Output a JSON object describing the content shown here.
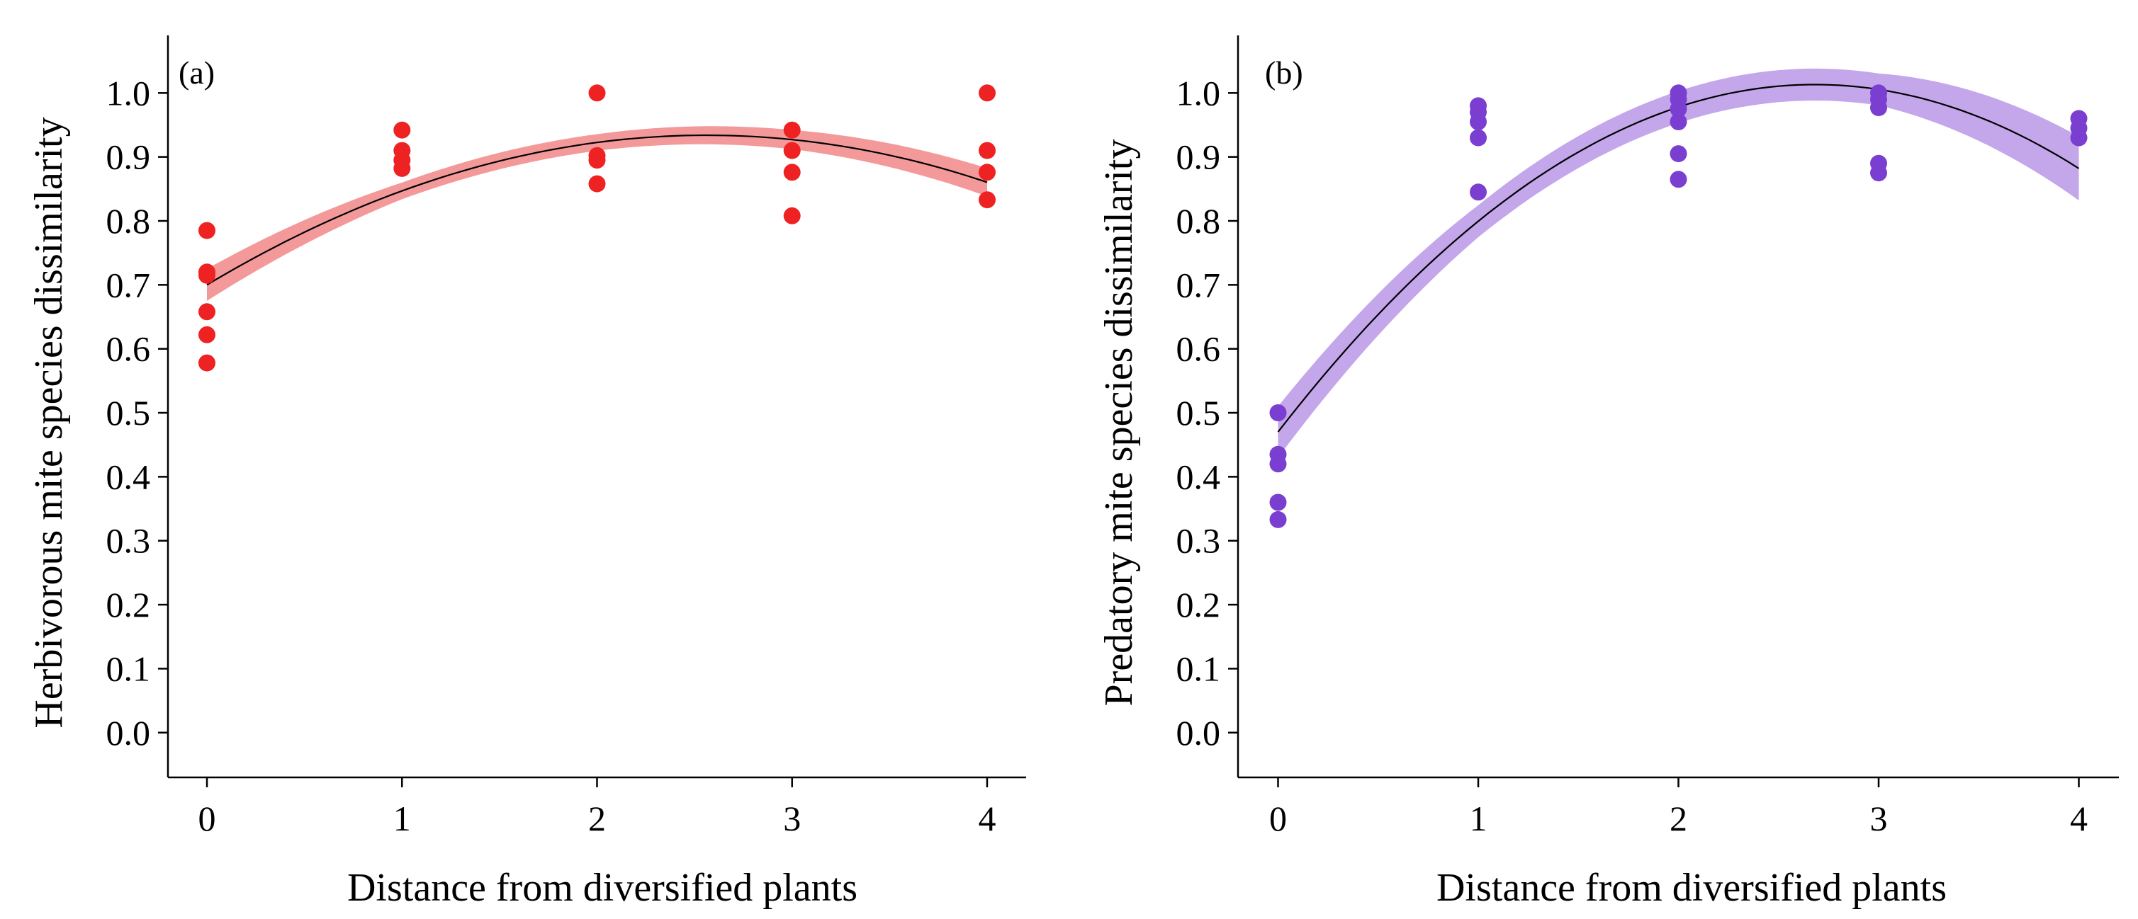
{
  "chart_data": [
    {
      "type": "scatter",
      "panel_label": "(a)",
      "title": "",
      "xlabel": "Distance from diversified plants",
      "ylabel": "Herbivorous mite species dissimilarity",
      "xlim": [
        -0.2,
        4.2
      ],
      "ylim": [
        -0.07,
        1.09
      ],
      "x_ticks": [
        0,
        1,
        2,
        3,
        4
      ],
      "x_tick_labels": [
        "0",
        "1",
        "2",
        "3",
        "4"
      ],
      "y_ticks": [
        0.0,
        0.1,
        0.2,
        0.3,
        0.4,
        0.5,
        0.6,
        0.7,
        0.8,
        0.9,
        1.0
      ],
      "y_tick_labels": [
        "0.0",
        "0.1",
        "0.2",
        "0.3",
        "0.4",
        "0.5",
        "0.6",
        "0.7",
        "0.8",
        "0.9",
        "1.0"
      ],
      "point_color": "#ee2222",
      "band_color": "#f4999a",
      "points": [
        {
          "x": 0,
          "y": 0.785
        },
        {
          "x": 0,
          "y": 0.72
        },
        {
          "x": 0,
          "y": 0.715
        },
        {
          "x": 0,
          "y": 0.658
        },
        {
          "x": 0,
          "y": 0.622
        },
        {
          "x": 0,
          "y": 0.578
        },
        {
          "x": 1,
          "y": 0.942
        },
        {
          "x": 1,
          "y": 0.91
        },
        {
          "x": 1,
          "y": 0.895
        },
        {
          "x": 1,
          "y": 0.882
        },
        {
          "x": 2,
          "y": 1.0
        },
        {
          "x": 2,
          "y": 0.902
        },
        {
          "x": 2,
          "y": 0.895
        },
        {
          "x": 2,
          "y": 0.858
        },
        {
          "x": 3,
          "y": 0.942
        },
        {
          "x": 3,
          "y": 0.91
        },
        {
          "x": 3,
          "y": 0.876
        },
        {
          "x": 3,
          "y": 0.808
        },
        {
          "x": 4,
          "y": 1.0
        },
        {
          "x": 4,
          "y": 0.91
        },
        {
          "x": 4,
          "y": 0.876
        },
        {
          "x": 4,
          "y": 0.833
        }
      ],
      "fit": {
        "type": "quadratic",
        "coefficients": [
          0.7,
          0.1825,
          -0.0356
        ],
        "x_range": [
          0,
          4
        ],
        "band_halfwidth": [
          0.025,
          0.013,
          0.013,
          0.015,
          0.022
        ]
      }
    },
    {
      "type": "scatter",
      "panel_label": "(b)",
      "title": "",
      "xlabel": "Distance from diversified plants",
      "ylabel": "Predatory mite species dissimilarity",
      "xlim": [
        -0.2,
        4.2
      ],
      "ylim": [
        -0.07,
        1.09
      ],
      "x_ticks": [
        0,
        1,
        2,
        3,
        4
      ],
      "x_tick_labels": [
        "0",
        "1",
        "2",
        "3",
        "4"
      ],
      "y_ticks": [
        0.0,
        0.1,
        0.2,
        0.3,
        0.4,
        0.5,
        0.6,
        0.7,
        0.8,
        0.9,
        1.0
      ],
      "y_tick_labels": [
        "0.0",
        "0.1",
        "0.2",
        "0.3",
        "0.4",
        "0.5",
        "0.6",
        "0.7",
        "0.8",
        "0.9",
        "1.0"
      ],
      "point_color": "#7a3fd0",
      "band_color": "#c4a6ea",
      "points": [
        {
          "x": 0,
          "y": 0.5
        },
        {
          "x": 0,
          "y": 0.435
        },
        {
          "x": 0,
          "y": 0.42
        },
        {
          "x": 0,
          "y": 0.36
        },
        {
          "x": 0,
          "y": 0.333
        },
        {
          "x": 1,
          "y": 0.98
        },
        {
          "x": 1,
          "y": 0.97
        },
        {
          "x": 1,
          "y": 0.955
        },
        {
          "x": 1,
          "y": 0.93
        },
        {
          "x": 1,
          "y": 0.845
        },
        {
          "x": 2,
          "y": 1.0
        },
        {
          "x": 2,
          "y": 0.99
        },
        {
          "x": 2,
          "y": 0.975
        },
        {
          "x": 2,
          "y": 0.955
        },
        {
          "x": 2,
          "y": 0.905
        },
        {
          "x": 2,
          "y": 0.865
        },
        {
          "x": 3,
          "y": 1.0
        },
        {
          "x": 3,
          "y": 0.99
        },
        {
          "x": 3,
          "y": 0.977
        },
        {
          "x": 3,
          "y": 0.89
        },
        {
          "x": 3,
          "y": 0.875
        },
        {
          "x": 4,
          "y": 0.96
        },
        {
          "x": 4,
          "y": 0.945
        },
        {
          "x": 4,
          "y": 0.93
        }
      ],
      "fit": {
        "type": "quadratic",
        "coefficients": [
          0.47,
          0.405,
          -0.0755
        ],
        "x_range": [
          0,
          4
        ],
        "band_halfwidth": [
          0.04,
          0.025,
          0.025,
          0.025,
          0.05
        ]
      }
    }
  ]
}
